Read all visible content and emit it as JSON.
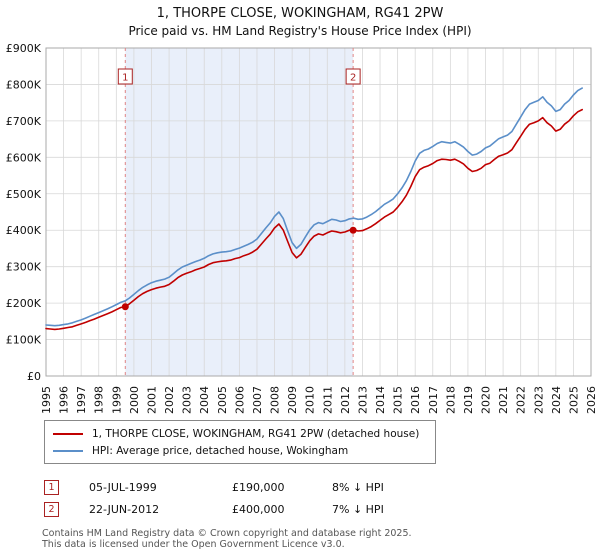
{
  "title": "1, THORPE CLOSE, WOKINGHAM, RG41 2PW",
  "subtitle": "Price paid vs. HM Land Registry's House Price Index (HPI)",
  "chart_data": {
    "type": "line",
    "x_start": 1995,
    "x_step": 0.25,
    "x_range": [
      1995,
      2026
    ],
    "ylim": [
      0,
      900000
    ],
    "y_tick_labels": [
      "£0",
      "£100K",
      "£200K",
      "£300K",
      "£400K",
      "£500K",
      "£600K",
      "£700K",
      "£800K",
      "£900K"
    ],
    "x_tick_labels": [
      "1995",
      "1996",
      "1997",
      "1998",
      "1999",
      "2000",
      "2001",
      "2002",
      "2003",
      "2004",
      "2005",
      "2006",
      "2007",
      "2008",
      "2009",
      "2010",
      "2011",
      "2012",
      "2013",
      "2014",
      "2015",
      "2016",
      "2017",
      "2018",
      "2019",
      "2020",
      "2021",
      "2022",
      "2023",
      "2024",
      "2025",
      "2026"
    ],
    "grid": true,
    "legend_position": "bottom",
    "shaded_region": {
      "from": 1999.51,
      "to": 2012.47,
      "color": "#e9effa"
    },
    "series": [
      {
        "name": "1, THORPE CLOSE, WOKINGHAM, RG41 2PW (detached house)",
        "color": "#c00000",
        "values_k": [
          130,
          129,
          128,
          129,
          131,
          133,
          135,
          139,
          143,
          147,
          152,
          156,
          161,
          166,
          171,
          176,
          182,
          188,
          190,
          198,
          208,
          218,
          226,
          232,
          237,
          241,
          244,
          246,
          251,
          260,
          270,
          277,
          282,
          286,
          291,
          295,
          299,
          306,
          311,
          313,
          315,
          316,
          318,
          322,
          325,
          330,
          334,
          340,
          348,
          362,
          376,
          389,
          406,
          417,
          400,
          369,
          339,
          324,
          334,
          353,
          371,
          384,
          390,
          387,
          393,
          398,
          396,
          393,
          395,
          400,
          401,
          398,
          399,
          404,
          410,
          418,
          427,
          436,
          443,
          450,
          463,
          478,
          496,
          520,
          547,
          566,
          573,
          577,
          583,
          591,
          595,
          594,
          592,
          595,
          589,
          582,
          570,
          561,
          564,
          570,
          580,
          584,
          594,
          603,
          607,
          612,
          621,
          640,
          658,
          677,
          691,
          695,
          700,
          709,
          695,
          686,
          672,
          677,
          691,
          700,
          714,
          725,
          731
        ]
      },
      {
        "name": "HPI: Average price, detached house, Wokingham",
        "color": "#5b8fc9",
        "values_k": [
          140,
          139,
          138,
          139,
          141,
          143,
          146,
          150,
          154,
          159,
          164,
          169,
          174,
          179,
          184,
          190,
          196,
          202,
          206,
          214,
          224,
          234,
          243,
          250,
          256,
          260,
          263,
          266,
          271,
          281,
          291,
          299,
          304,
          309,
          314,
          318,
          323,
          330,
          335,
          338,
          340,
          341,
          343,
          347,
          351,
          356,
          361,
          367,
          376,
          391,
          406,
          420,
          438,
          450,
          432,
          398,
          366,
          350,
          361,
          381,
          401,
          415,
          421,
          418,
          424,
          430,
          428,
          424,
          426,
          431,
          433,
          430,
          431,
          436,
          443,
          451,
          461,
          471,
          478,
          486,
          500,
          516,
          536,
          561,
          590,
          611,
          619,
          623,
          630,
          638,
          643,
          641,
          639,
          643,
          636,
          628,
          616,
          606,
          609,
          616,
          626,
          631,
          641,
          651,
          656,
          661,
          671,
          691,
          711,
          731,
          746,
          751,
          756,
          766,
          751,
          741,
          726,
          731,
          746,
          756,
          771,
          783,
          790
        ]
      }
    ],
    "markers": [
      {
        "label": "1",
        "x": 1999.51,
        "value_k": 190
      },
      {
        "label": "2",
        "x": 2012.47,
        "value_k": 400
      }
    ]
  },
  "legend": {
    "items": [
      {
        "label": "1, THORPE CLOSE, WOKINGHAM, RG41 2PW (detached house)",
        "color": "#c00000"
      },
      {
        "label": "HPI: Average price, detached house, Wokingham",
        "color": "#5b8fc9"
      }
    ]
  },
  "annotations": [
    {
      "num": "1",
      "date": "05-JUL-1999",
      "price": "£190,000",
      "hpi": "8% ↓ HPI"
    },
    {
      "num": "2",
      "date": "22-JUN-2012",
      "price": "£400,000",
      "hpi": "7% ↓ HPI"
    }
  ],
  "footer": {
    "line1": "Contains HM Land Registry data © Crown copyright and database right 2025.",
    "line2": "This data is licensed under the Open Government Licence v3.0."
  }
}
